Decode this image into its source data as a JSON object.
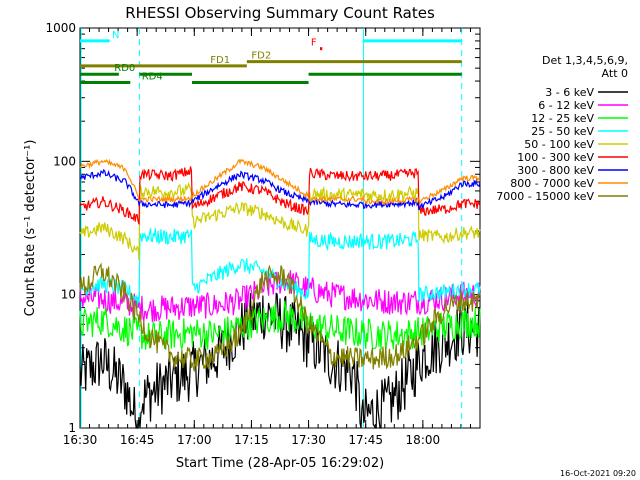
{
  "chart_data": {
    "type": "line",
    "title": "RHESSI Observing Summary Count Rates",
    "xlabel": "Start Time (28-Apr-05 16:29:02)",
    "ylabel": "Count Rate (s⁻¹ detector⁻¹)",
    "yscale": "log",
    "ylim": [
      1,
      1000
    ],
    "xlim_minutes": [
      16.5,
      18.25
    ],
    "x_ticks": [
      {
        "label": "16:30",
        "t": 16.5
      },
      {
        "label": "16:45",
        "t": 16.75
      },
      {
        "label": "17:00",
        "t": 17.0
      },
      {
        "label": "17:15",
        "t": 17.25
      },
      {
        "label": "17:30",
        "t": 17.5
      },
      {
        "label": "17:45",
        "t": 17.75
      },
      {
        "label": "18:00",
        "t": 18.0
      }
    ],
    "y_ticks": [
      {
        "label": "1",
        "v": 1
      },
      {
        "label": "10",
        "v": 10
      },
      {
        "label": "100",
        "v": 100
      },
      {
        "label": "1000",
        "v": 1000
      }
    ],
    "legend_header": [
      "Det 1,3,4,5,6,9,",
      "Att 0"
    ],
    "series": [
      {
        "name": "3 - 6 keV",
        "color": "#000000",
        "t": [
          16.5,
          16.6,
          16.7,
          16.76,
          16.76,
          16.9,
          16.98,
          17.1,
          17.2,
          17.3,
          17.4,
          17.5,
          17.6,
          17.7,
          17.74,
          17.74,
          17.85,
          17.95,
          18.0,
          18.1,
          18.17
        ],
        "v": [
          2.5,
          3.2,
          2.0,
          1.0,
          1.6,
          2.3,
          2.6,
          3.5,
          5.5,
          7.5,
          6.0,
          4.5,
          3.2,
          2.6,
          1.0,
          1.2,
          1.5,
          2.5,
          3.5,
          4.5,
          5.5
        ]
      },
      {
        "name": "6 - 12 keV",
        "color": "#ff00ff",
        "t": [
          16.5,
          16.6,
          16.7,
          16.8,
          16.9,
          17.0,
          17.1,
          17.2,
          17.3,
          17.4,
          17.5,
          17.6,
          17.7,
          17.8,
          17.9,
          18.0,
          18.1,
          18.17
        ],
        "v": [
          9.5,
          9.3,
          8.5,
          7.8,
          8.0,
          8.2,
          8.3,
          9.0,
          11,
          13,
          11,
          10,
          9.5,
          9.0,
          8.8,
          9.0,
          9.5,
          10
        ]
      },
      {
        "name": "12 - 25 keV",
        "color": "#00ff00",
        "t": [
          16.5,
          16.6,
          16.7,
          16.8,
          16.9,
          17.0,
          17.1,
          17.2,
          17.3,
          17.4,
          17.5,
          17.6,
          17.7,
          17.8,
          17.9,
          18.0,
          18.1,
          18.17
        ],
        "v": [
          6.0,
          6.5,
          5.5,
          4.8,
          5.0,
          5.2,
          5.0,
          5.8,
          6.5,
          7.0,
          6.0,
          5.5,
          5.2,
          5.0,
          5.0,
          5.3,
          5.8,
          6.2
        ]
      },
      {
        "name": "25 - 50 keV",
        "color": "#00ffff",
        "t": [
          16.5,
          16.6,
          16.7,
          16.76,
          16.76,
          16.9,
          16.99,
          16.99,
          17.1,
          17.2,
          17.3,
          17.4,
          17.5,
          17.5,
          17.6,
          17.7,
          17.74,
          17.74,
          17.85,
          17.98,
          17.98,
          18.1,
          18.17
        ],
        "v": [
          11,
          12,
          11,
          9.0,
          28,
          27,
          28,
          11,
          14,
          17,
          15,
          12,
          10,
          26,
          25,
          25,
          26,
          25,
          25,
          26,
          10,
          10.5,
          11
        ]
      },
      {
        "name": "50 - 100 keV",
        "color": "#cccc00",
        "t": [
          16.5,
          16.6,
          16.7,
          16.76,
          16.76,
          16.9,
          16.99,
          16.99,
          17.1,
          17.2,
          17.3,
          17.4,
          17.5,
          17.5,
          17.6,
          17.7,
          17.74,
          17.74,
          17.85,
          17.98,
          17.98,
          18.1,
          18.17
        ],
        "v": [
          28,
          32,
          26,
          20,
          60,
          59,
          61,
          35,
          40,
          45,
          41,
          34,
          30,
          57,
          56,
          56,
          57,
          56,
          56,
          58,
          28,
          27,
          29
        ]
      },
      {
        "name": "100 - 300 keV",
        "color": "#ff0000",
        "t": [
          16.5,
          16.6,
          16.7,
          16.76,
          16.76,
          16.9,
          16.99,
          16.99,
          17.1,
          17.2,
          17.3,
          17.4,
          17.5,
          17.5,
          17.6,
          17.7,
          17.74,
          17.74,
          17.85,
          17.98,
          17.98,
          18.1,
          18.17
        ],
        "v": [
          45,
          50,
          42,
          36,
          80,
          78,
          85,
          45,
          55,
          65,
          60,
          48,
          42,
          82,
          78,
          77,
          78,
          77,
          78,
          82,
          42,
          44,
          48
        ]
      },
      {
        "name": "300 - 800 keV",
        "color": "#0000ff",
        "t": [
          16.5,
          16.6,
          16.7,
          16.76,
          16.76,
          16.9,
          16.99,
          16.99,
          17.1,
          17.2,
          17.3,
          17.4,
          17.5,
          17.5,
          17.6,
          17.7,
          17.74,
          17.74,
          17.85,
          17.98,
          17.98,
          18.1,
          18.17
        ],
        "v": [
          75,
          82,
          70,
          48,
          48,
          47,
          49,
          50,
          65,
          80,
          72,
          58,
          50,
          50,
          48,
          47,
          48,
          47,
          48,
          49,
          45,
          55,
          68
        ]
      },
      {
        "name": "800 - 7000 keV",
        "color": "#ff8c00",
        "t": [
          16.5,
          16.6,
          16.7,
          16.76,
          16.76,
          16.9,
          16.99,
          16.99,
          17.1,
          17.2,
          17.3,
          17.4,
          17.5,
          17.5,
          17.6,
          17.7,
          17.74,
          17.74,
          17.85,
          17.98,
          17.98,
          18.1,
          18.17
        ],
        "v": [
          92,
          100,
          88,
          52,
          52,
          52,
          53,
          55,
          75,
          100,
          90,
          70,
          55,
          52,
          52,
          52,
          52,
          50,
          50,
          52,
          50,
          62,
          75
        ]
      },
      {
        "name": "7000 - 15000 keV",
        "color": "#808000",
        "t": [
          16.5,
          16.6,
          16.7,
          16.8,
          16.9,
          17.0,
          17.1,
          17.2,
          17.3,
          17.4,
          17.5,
          17.6,
          17.7,
          17.8,
          17.9,
          18.0,
          18.1,
          18.17
        ],
        "v": [
          11,
          15,
          10,
          5.0,
          3.5,
          3.2,
          3.5,
          5.0,
          13,
          14,
          6.0,
          3.5,
          3.3,
          3.3,
          3.6,
          5.0,
          8.0,
          9.0
        ]
      }
    ],
    "annotations": [
      {
        "label": "N",
        "color": "#00ffff",
        "segments": [
          [
            16.5,
            16.63
          ],
          [
            17.74,
            18.17
          ]
        ],
        "level": 800,
        "label_t": 16.64
      },
      {
        "label": "FD1",
        "color": "#808000",
        "segments": [
          [
            16.5,
            17.23
          ]
        ],
        "level": 520,
        "label_t": 17.07
      },
      {
        "label": "FD2",
        "color": "#808000",
        "segments": [
          [
            17.23,
            18.17
          ]
        ],
        "level": 560,
        "label_t": 17.25
      },
      {
        "label": "F",
        "color": "#ff0000",
        "segments": [
          [
            17.55,
            17.56
          ]
        ],
        "level": 700,
        "label_t": 17.51
      },
      {
        "label": "RD0",
        "color": "#008000",
        "segments": [
          [
            16.5,
            16.67
          ],
          [
            16.76,
            16.99
          ],
          [
            17.5,
            18.17
          ]
        ],
        "level": 450,
        "label_t": 16.65
      },
      {
        "label": "RD4",
        "color": "#008000",
        "segments": [
          [
            16.5,
            16.72
          ],
          [
            16.99,
            17.5
          ]
        ],
        "level": 390,
        "label_t": 16.77
      }
    ],
    "dashed_markers": [
      16.76,
      18.17
    ]
  },
  "footer_timestamp": "16-Oct-2021 09:20"
}
